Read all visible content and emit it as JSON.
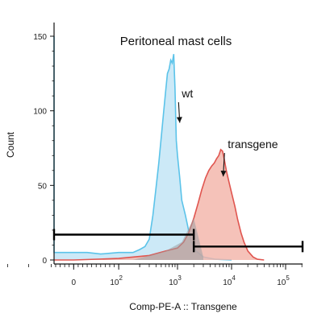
{
  "chart_data": {
    "type": "area",
    "title": "Peritoneal mast cells",
    "xlabel": "Comp-PE-A :: Transgene",
    "ylabel": "Count",
    "ylim": [
      0,
      160
    ],
    "y_ticks": [
      0,
      50,
      100,
      150
    ],
    "x_tick_labels": [
      {
        "base": "0",
        "exp": ""
      },
      {
        "base": "10",
        "exp": "2"
      },
      {
        "base": "10",
        "exp": "3"
      },
      {
        "base": "10",
        "exp": "4"
      },
      {
        "base": "10",
        "exp": "5"
      }
    ],
    "x_tick_positions": [
      0,
      100,
      1000,
      10000,
      100000
    ],
    "x_scale": "biexponential",
    "series": [
      {
        "name": "wt",
        "color": "#5bc3e9",
        "fill": "#bfe3f5",
        "points": [
          [
            -400,
            150
          ],
          [
            -380,
            30
          ],
          [
            -300,
            8
          ],
          [
            -200,
            6
          ],
          [
            -100,
            5
          ],
          [
            0,
            5
          ],
          [
            30,
            5
          ],
          [
            60,
            4
          ],
          [
            100,
            5
          ],
          [
            150,
            5
          ],
          [
            200,
            7
          ],
          [
            250,
            9
          ],
          [
            300,
            14
          ],
          [
            350,
            30
          ],
          [
            400,
            48
          ],
          [
            450,
            65
          ],
          [
            500,
            82
          ],
          [
            550,
            98
          ],
          [
            600,
            112
          ],
          [
            650,
            125
          ],
          [
            700,
            128
          ],
          [
            750,
            134
          ],
          [
            800,
            132
          ],
          [
            850,
            138
          ],
          [
            900,
            115
          ],
          [
            950,
            80
          ],
          [
            1000,
            70
          ],
          [
            1100,
            55
          ],
          [
            1200,
            40
          ],
          [
            1400,
            30
          ],
          [
            1600,
            20
          ],
          [
            1800,
            12
          ],
          [
            2200,
            6
          ],
          [
            3000,
            2
          ],
          [
            5000,
            0.5
          ],
          [
            10000,
            0
          ]
        ]
      },
      {
        "name": "transgene",
        "color": "#e0554f",
        "fill": "#f2b3a8",
        "points": [
          [
            -400,
            0
          ],
          [
            0,
            0
          ],
          [
            100,
            1
          ],
          [
            300,
            3
          ],
          [
            600,
            6
          ],
          [
            1000,
            8
          ],
          [
            1300,
            12
          ],
          [
            1600,
            18
          ],
          [
            2000,
            28
          ],
          [
            2400,
            38
          ],
          [
            2800,
            47
          ],
          [
            3300,
            55
          ],
          [
            3800,
            60
          ],
          [
            4300,
            63
          ],
          [
            4800,
            65
          ],
          [
            5300,
            68
          ],
          [
            5800,
            70
          ],
          [
            6300,
            74
          ],
          [
            6800,
            73
          ],
          [
            7300,
            68
          ],
          [
            8000,
            60
          ],
          [
            9000,
            52
          ],
          [
            10000,
            45
          ],
          [
            11500,
            36
          ],
          [
            13000,
            27
          ],
          [
            15000,
            18
          ],
          [
            17000,
            12
          ],
          [
            20000,
            6
          ],
          [
            25000,
            2
          ],
          [
            30000,
            0.5
          ],
          [
            40000,
            0
          ]
        ]
      }
    ],
    "gates": [
      {
        "x_range": [
          -400,
          2000
        ],
        "y": 17
      },
      {
        "x_range": [
          2000,
          262000
        ],
        "y": 9
      }
    ],
    "annotations": [
      {
        "text": "wt",
        "x": 1200,
        "y": 109,
        "arrow_to": [
          1100,
          92
        ]
      },
      {
        "text": "transgene",
        "x": 8500,
        "y": 75,
        "arrow_to": [
          7000,
          56
        ]
      }
    ]
  }
}
